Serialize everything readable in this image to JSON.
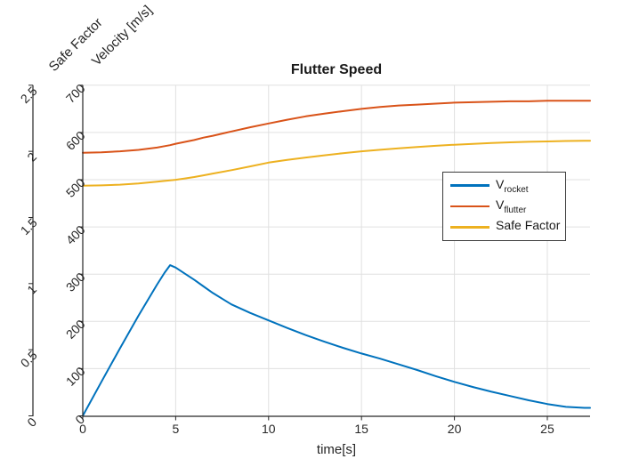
{
  "colors": {
    "v_rocket": "#0072BD",
    "v_flutter": "#D95319",
    "safe_factor": "#EDB120",
    "axis": "#262626",
    "grid": "#E0E0E0",
    "legend_border": "#3a3a3a",
    "background": "#FFFFFF"
  },
  "chart_data": {
    "type": "line",
    "title": "Flutter Speed",
    "xlabel": "time[s]",
    "grid": true,
    "xlim": [
      0,
      27.3
    ],
    "x_ticks": [
      0,
      5,
      10,
      15,
      20,
      25
    ],
    "velocity_axis": {
      "label": "Velocity [m/s]",
      "lim": [
        0,
        700
      ],
      "ticks": [
        0,
        100,
        200,
        300,
        400,
        500,
        600,
        700
      ]
    },
    "safe_factor_axis": {
      "label": "Safe Factor",
      "lim": [
        0,
        2.5
      ],
      "ticks": [
        0,
        0.5,
        1,
        1.5,
        2,
        2.5
      ]
    },
    "x": [
      0,
      1,
      2,
      3,
      4,
      4.4,
      4.7,
      5,
      5.5,
      6,
      6.5,
      7,
      8,
      9,
      10,
      11,
      12,
      13,
      14,
      15,
      16,
      17,
      18,
      19,
      20,
      21,
      22,
      23,
      24,
      25,
      26,
      27,
      27.3
    ],
    "series": [
      {
        "name": "V_rocket",
        "axis": "velocity",
        "color": "#0072BD",
        "values": [
          0,
          72,
          143,
          212,
          278,
          303,
          319,
          314,
          301,
          288,
          274,
          260,
          236,
          218,
          202,
          186,
          171,
          157,
          144,
          132,
          121,
          109,
          97,
          84,
          72,
          61,
          51,
          42,
          33,
          25,
          19,
          17,
          17
        ]
      },
      {
        "name": "V_flutter",
        "axis": "velocity",
        "color": "#D95319",
        "values": [
          557,
          558,
          560,
          563,
          568,
          571,
          573,
          576,
          580,
          584,
          589,
          593,
          602,
          611,
          619,
          627,
          634,
          640,
          645,
          650,
          654,
          657,
          659,
          661,
          663,
          664,
          665,
          666,
          666,
          667,
          667,
          667,
          667
        ]
      },
      {
        "name": "Safe Factor",
        "axis": "safe_factor",
        "color": "#EDB120",
        "values": [
          1.74,
          1.743,
          1.748,
          1.757,
          1.77,
          1.776,
          1.78,
          1.785,
          1.795,
          1.806,
          1.819,
          1.832,
          1.858,
          1.886,
          1.915,
          1.935,
          1.953,
          1.97,
          1.986,
          2.0,
          2.012,
          2.023,
          2.033,
          2.042,
          2.05,
          2.057,
          2.063,
          2.068,
          2.072,
          2.075,
          2.078,
          2.08,
          2.08
        ]
      }
    ],
    "legend": {
      "position": "right-middle",
      "items": [
        {
          "main": "V",
          "sub": "rocket"
        },
        {
          "main": "V",
          "sub": "flutter"
        },
        {
          "main": "Safe Factor",
          "sub": ""
        }
      ]
    }
  }
}
